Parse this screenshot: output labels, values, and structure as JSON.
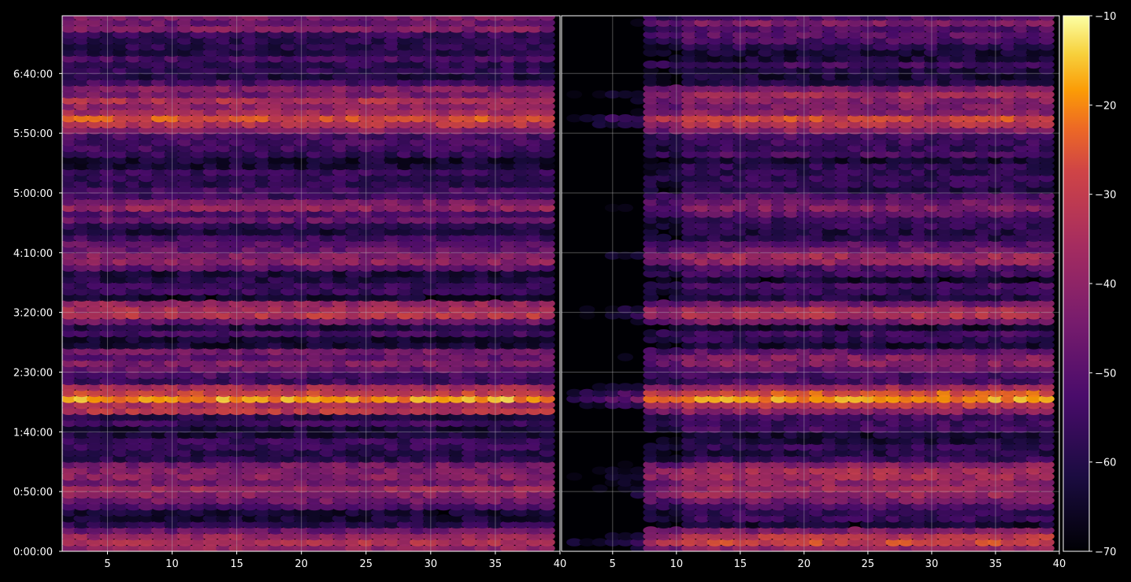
{
  "chart_data": {
    "type": "heatmap",
    "panels": [
      {
        "name": "",
        "x_ticks": [
          5,
          10,
          15,
          20,
          25,
          30,
          35,
          40
        ],
        "xlim": [
          1.5,
          40
        ],
        "x_tick_labels": [
          "5",
          "10",
          "15",
          "20",
          "25",
          "30",
          "35",
          "40"
        ]
      },
      {
        "name": "",
        "x_ticks": [
          5,
          10,
          15,
          20,
          25,
          30,
          35,
          40
        ],
        "xlim": [
          1,
          40
        ],
        "x_tick_labels": [
          "5",
          "10",
          "15",
          "20",
          "25",
          "30",
          "35",
          "40"
        ],
        "empty_left_region_until_x": 8
      }
    ],
    "y_ticks_seconds": [
      0,
      3000,
      6000,
      9000,
      12000,
      15000,
      18000,
      21000,
      24000
    ],
    "y_tick_labels": [
      "0:00:00",
      "0:50:00",
      "1:40:00",
      "2:30:00",
      "3:20:00",
      "4:10:00",
      "5:00:00",
      "5:50:00",
      "6:40:00"
    ],
    "ylim_seconds": [
      0,
      26900
    ],
    "colorbar": {
      "colormap": "inferno",
      "range": [
        -70,
        -10
      ],
      "ticks": [
        -70,
        -60,
        -50,
        -40,
        -30,
        -20,
        -10
      ],
      "tick_labels": [
        "−70",
        "−60",
        "−50",
        "−40",
        "−30",
        "−20",
        "−10"
      ]
    },
    "grid": true,
    "row_intensity_profile": [
      {
        "y_seconds": 450,
        "value": -30
      },
      {
        "y_seconds": 3000,
        "value": -32
      },
      {
        "y_seconds": 3900,
        "value": -34
      },
      {
        "y_seconds": 7700,
        "value": -22
      },
      {
        "y_seconds": 9500,
        "value": -38
      },
      {
        "y_seconds": 12000,
        "value": -34
      },
      {
        "y_seconds": 14800,
        "value": -36
      },
      {
        "y_seconds": 17300,
        "value": -40
      },
      {
        "y_seconds": 21800,
        "value": -30
      },
      {
        "y_seconds": 22800,
        "value": -36
      },
      {
        "y_seconds": 26500,
        "value": -42
      }
    ]
  }
}
